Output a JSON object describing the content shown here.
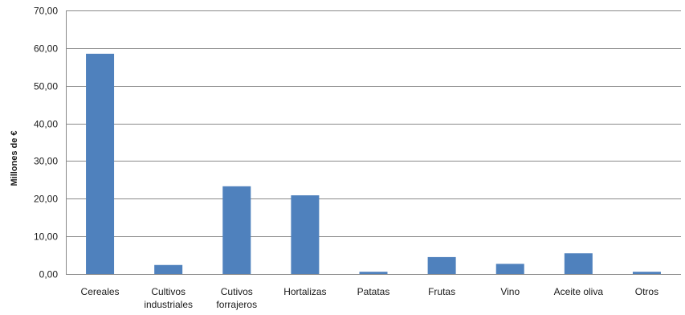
{
  "chart_data": {
    "type": "bar",
    "title": "",
    "xlabel": "",
    "ylabel": "Millones de €",
    "ylim": [
      0,
      70
    ],
    "ytick_step": 10,
    "ytick_labels": [
      "0,00",
      "10,00",
      "20,00",
      "30,00",
      "40,00",
      "50,00",
      "60,00",
      "70,00"
    ],
    "grid": true,
    "legend": "none",
    "bar_color": "#4f81bd",
    "categories": [
      [
        "Cereales"
      ],
      [
        "Cultivos",
        "industriales"
      ],
      [
        "Cutivos",
        "forrajeros"
      ],
      [
        "Hortalizas"
      ],
      [
        "Patatas"
      ],
      [
        "Frutas"
      ],
      [
        "Vino"
      ],
      [
        "Aceite oliva"
      ],
      [
        "Otros"
      ]
    ],
    "values": [
      58.5,
      2.4,
      23.3,
      20.9,
      0.6,
      4.5,
      2.7,
      5.5,
      0.6
    ]
  }
}
